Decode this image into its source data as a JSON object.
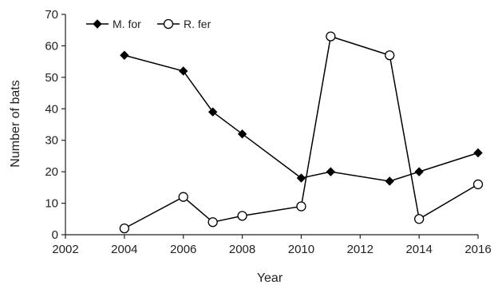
{
  "chart_data": {
    "type": "line",
    "xlabel": "Year",
    "ylabel": "Number of bats",
    "xlim": [
      2002,
      2016
    ],
    "ylim": [
      0,
      70
    ],
    "xticks": [
      2002,
      2004,
      2006,
      2008,
      2010,
      2012,
      2014,
      2016
    ],
    "yticks": [
      0,
      10,
      20,
      30,
      40,
      50,
      60,
      70
    ],
    "grid": false,
    "legend": "top-left",
    "series": [
      {
        "name": "M. for",
        "marker": "filled-diamond",
        "color": "#000000",
        "x": [
          2004,
          2006,
          2007,
          2008,
          2010,
          2011,
          2013,
          2014,
          2016
        ],
        "y": [
          57,
          52,
          39,
          32,
          18,
          20,
          17,
          20,
          26
        ]
      },
      {
        "name": "R. fer",
        "marker": "open-circle",
        "color": "#000000",
        "x": [
          2004,
          2006,
          2007,
          2008,
          2010,
          2011,
          2013,
          2014,
          2016
        ],
        "y": [
          2,
          12,
          4,
          6,
          9,
          63,
          57,
          5,
          16
        ]
      }
    ]
  }
}
